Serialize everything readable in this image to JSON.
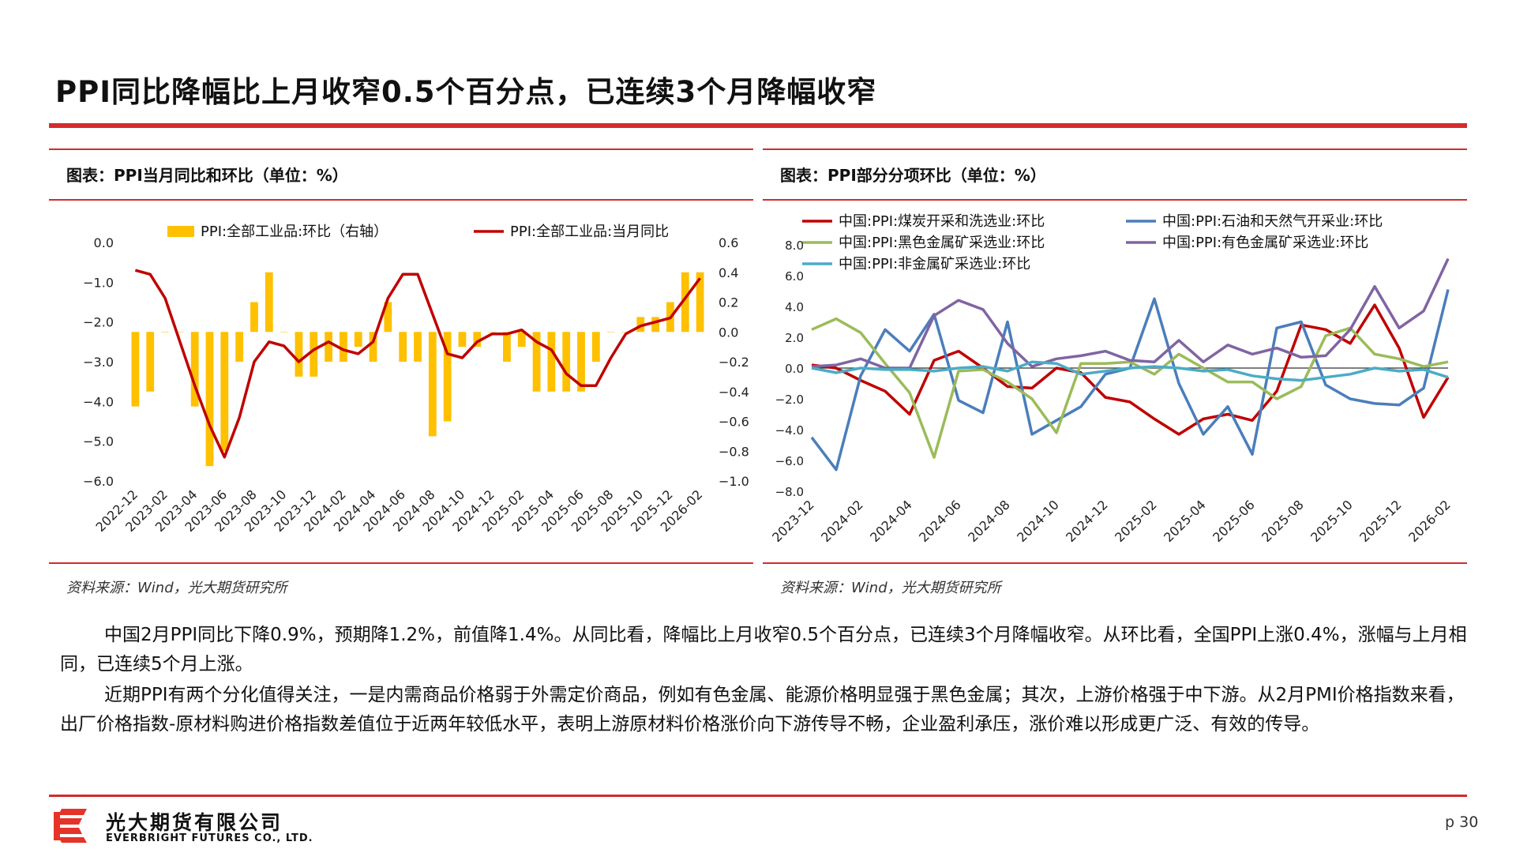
{
  "page": {
    "title": "PPI同比降幅比上月收窄0.5个百分点，已连续3个月降幅收窄",
    "page_number": "p 30",
    "company_cn": "光大期货有限公司",
    "company_en": "EVERBRIGHT FUTURES CO., LTD."
  },
  "colors": {
    "accent_red": "#d42b2b",
    "bar_yellow": "#ffc000"
  },
  "left_panel": {
    "header": "图表：PPI当月同比和环比（单位：%）",
    "source": "资料来源：Wind，光大期货研究所"
  },
  "right_panel": {
    "header": "图表：PPI部分分项环比（单位：%）",
    "source": "资料来源：Wind，光大期货研究所"
  },
  "body": {
    "para1": "中国2月PPI同比下降0.9%，预期降1.2%，前值降1.4%。从同比看，降幅比上月收窄0.5个百分点，已连续3个月降幅收窄。从环比看，全国PPI上涨0.4%，涨幅与上月相同，已连续5个月上涨。",
    "para2": "近期PPI有两个分化值得关注，一是内需商品价格弱于外需定价商品，例如有色金属、能源价格明显强于黑色金属；其次，上游价格强于中下游。从2月PMI价格指数来看，出厂价格指数-原材料购进价格指数差值位于近两年较低水平，表明上游原材料价格涨价向下游传导不畅，企业盈利承压，涨价难以形成更广泛、有效的传导。"
  },
  "chart_data": [
    {
      "type": "bar+line",
      "x": [
        "2022-12",
        "2023-01",
        "2023-02",
        "2023-03",
        "2023-04",
        "2023-05",
        "2023-06",
        "2023-07",
        "2023-08",
        "2023-09",
        "2023-10",
        "2023-11",
        "2023-12",
        "2024-01",
        "2024-02",
        "2024-03",
        "2024-04",
        "2024-05",
        "2024-06",
        "2024-07",
        "2024-08",
        "2024-09",
        "2024-10",
        "2024-11",
        "2024-12",
        "2025-01",
        "2025-02",
        "2025-03",
        "2025-04",
        "2025-05",
        "2025-06",
        "2025-07",
        "2025-08",
        "2025-09",
        "2025-10",
        "2025-11",
        "2025-12",
        "2026-01",
        "2026-02"
      ],
      "x_tick_labels": [
        "2022-12",
        "2023-02",
        "2023-04",
        "2023-06",
        "2023-08",
        "2023-10",
        "2023-12",
        "2024-02",
        "2024-04",
        "2024-06",
        "2024-08",
        "2024-10",
        "2024-12",
        "2025-02",
        "2025-04",
        "2025-06",
        "2025-08",
        "2025-10",
        "2025-12",
        "2026-02"
      ],
      "series": [
        {
          "name": "PPI:全部工业品:环比（右轴）",
          "kind": "bar",
          "axis": "right",
          "color": "#ffc000",
          "values": [
            -0.5,
            -0.4,
            0.0,
            0.0,
            -0.5,
            -0.9,
            -0.8,
            -0.2,
            0.2,
            0.4,
            0.0,
            -0.3,
            -0.3,
            -0.2,
            -0.2,
            -0.1,
            -0.2,
            0.2,
            -0.2,
            -0.2,
            -0.7,
            -0.6,
            -0.1,
            -0.1,
            0.0,
            -0.2,
            -0.1,
            -0.4,
            -0.4,
            -0.4,
            -0.4,
            -0.2,
            0.0,
            0.0,
            0.1,
            0.1,
            0.2,
            0.4,
            0.4
          ]
        },
        {
          "name": "PPI:全部工业品:当月同比",
          "kind": "line",
          "axis": "left",
          "color": "#c00000",
          "values": [
            -0.7,
            -0.8,
            -1.4,
            -2.5,
            -3.6,
            -4.6,
            -5.4,
            -4.4,
            -3.0,
            -2.5,
            -2.6,
            -3.0,
            -2.7,
            -2.5,
            -2.7,
            -2.8,
            -2.5,
            -1.4,
            -0.8,
            -0.8,
            -1.8,
            -2.8,
            -2.9,
            -2.5,
            -2.3,
            -2.3,
            -2.2,
            -2.5,
            -2.7,
            -3.3,
            -3.6,
            -3.6,
            -2.9,
            -2.3,
            -2.1,
            -2.0,
            -1.9,
            -1.4,
            -0.9
          ]
        }
      ],
      "y_left": {
        "min": -6.0,
        "max": 0.0,
        "ticks": [
          "0.0",
          "−1.0",
          "−2.0",
          "−3.0",
          "−4.0",
          "−5.0",
          "−6.0"
        ]
      },
      "y_right": {
        "min": -1.0,
        "max": 0.6,
        "ticks": [
          "0.6",
          "0.4",
          "0.2",
          "0.0",
          "−0.2",
          "−0.4",
          "−0.6",
          "−0.8",
          "−1.0"
        ]
      },
      "legend": {
        "position": "top"
      }
    },
    {
      "type": "line",
      "x": [
        "2023-12",
        "2024-01",
        "2024-02",
        "2024-03",
        "2024-04",
        "2024-05",
        "2024-06",
        "2024-07",
        "2024-08",
        "2024-09",
        "2024-10",
        "2024-11",
        "2024-12",
        "2025-01",
        "2025-02",
        "2025-03",
        "2025-04",
        "2025-05",
        "2025-06",
        "2025-07",
        "2025-08",
        "2025-09",
        "2025-10",
        "2025-11",
        "2025-12",
        "2026-01",
        "2026-02"
      ],
      "x_tick_labels": [
        "2023-12",
        "2024-02",
        "2024-04",
        "2024-06",
        "2024-08",
        "2024-10",
        "2024-12",
        "2025-02",
        "2025-04",
        "2025-06",
        "2025-08",
        "2025-10",
        "2025-12",
        "2026-02"
      ],
      "series": [
        {
          "name": "中国:PPI:煤炭开采和洗选业:环比",
          "color": "#c00000",
          "values": [
            0.2,
            0.0,
            -0.8,
            -1.5,
            -3.0,
            0.5,
            1.1,
            0.0,
            -1.2,
            -1.3,
            0.0,
            -0.3,
            -1.9,
            -2.2,
            -3.3,
            -4.3,
            -3.3,
            -3.0,
            -3.4,
            -1.5,
            2.8,
            2.5,
            1.6,
            4.1,
            1.3,
            -3.2,
            -0.6
          ]
        },
        {
          "name": "中国:PPI:石油和天然气开采业:环比",
          "color": "#4a7ebb",
          "values": [
            -4.5,
            -6.6,
            -0.5,
            2.5,
            1.1,
            3.5,
            -2.1,
            -2.9,
            3.0,
            -4.3,
            -3.4,
            -2.5,
            -0.4,
            0.0,
            4.5,
            -1.0,
            -4.3,
            -2.5,
            -5.6,
            2.6,
            3.0,
            -1.1,
            -2.0,
            -2.3,
            -2.4,
            -1.3,
            5.1
          ]
        },
        {
          "name": "中国:PPI:黑色金属矿采选业:环比",
          "color": "#9bbb59",
          "values": [
            2.5,
            3.2,
            2.3,
            0.3,
            -1.6,
            -5.8,
            -0.2,
            -0.1,
            -0.9,
            -2.0,
            -4.2,
            0.3,
            0.3,
            0.4,
            -0.4,
            0.9,
            0.0,
            -0.9,
            -0.9,
            -2.0,
            -1.2,
            2.1,
            2.6,
            0.9,
            0.6,
            0.1,
            0.4
          ]
        },
        {
          "name": "中国:PPI:有色金属矿采选业:环比",
          "color": "#8064a2",
          "values": [
            0.1,
            0.2,
            0.6,
            0.0,
            0.0,
            3.4,
            4.4,
            3.8,
            1.6,
            0.1,
            0.6,
            0.8,
            1.1,
            0.5,
            0.4,
            1.8,
            0.4,
            1.5,
            0.9,
            1.3,
            0.7,
            0.8,
            2.5,
            5.3,
            2.6,
            3.7,
            7.1
          ]
        },
        {
          "name": "中国:PPI:非金属矿采选业:环比",
          "color": "#4bacc6",
          "values": [
            0.0,
            -0.3,
            0.0,
            -0.1,
            -0.1,
            -0.2,
            0.0,
            0.1,
            -0.2,
            0.4,
            0.3,
            -0.4,
            -0.2,
            0.0,
            0.1,
            0.0,
            -0.2,
            -0.1,
            -0.5,
            -0.7,
            -0.8,
            -0.6,
            -0.4,
            0.0,
            -0.2,
            -0.1,
            -0.6
          ]
        }
      ],
      "y": {
        "min": -8.0,
        "max": 8.0,
        "ticks": [
          "8.0",
          "6.0",
          "4.0",
          "2.0",
          "0.0",
          "−2.0",
          "−4.0",
          "−6.0",
          "−8.0"
        ]
      },
      "legend": {
        "position": "top"
      }
    }
  ]
}
